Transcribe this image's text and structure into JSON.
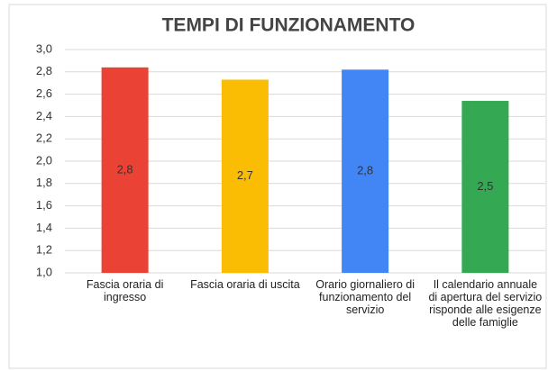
{
  "chart_data": {
    "type": "bar",
    "title": "TEMPI DI FUNZIONAMENTO",
    "categories": [
      "Fascia oraria di ingresso",
      "Fascia oraria di uscita",
      "Orario giornaliero di funzionamento del servizio",
      "Il calendario annuale di apertura del servizio risponde alle esigenze delle famiglie"
    ],
    "values": [
      2.84,
      2.73,
      2.82,
      2.54
    ],
    "value_labels": [
      "2,8",
      "2,7",
      "2,8",
      "2,5"
    ],
    "colors": [
      "#ea4335",
      "#fbbc04",
      "#4285f4",
      "#34a853"
    ],
    "ylim": [
      1.0,
      3.0
    ],
    "yticks": [
      {
        "value": 1.0,
        "label": "1,0"
      },
      {
        "value": 1.2,
        "label": "1,2"
      },
      {
        "value": 1.4,
        "label": "1,4"
      },
      {
        "value": 1.6,
        "label": "1,6"
      },
      {
        "value": 1.8,
        "label": "1,8"
      },
      {
        "value": 2.0,
        "label": "2,0"
      },
      {
        "value": 2.2,
        "label": "2,2"
      },
      {
        "value": 2.4,
        "label": "2,4"
      },
      {
        "value": 2.6,
        "label": "2,6"
      },
      {
        "value": 2.8,
        "label": "2,8"
      },
      {
        "value": 3.0,
        "label": "3,0"
      }
    ],
    "grid": true
  }
}
